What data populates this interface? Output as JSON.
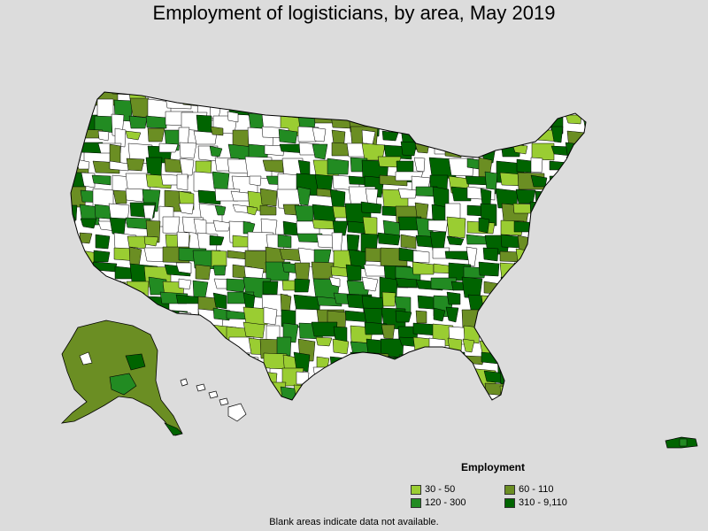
{
  "title": "Employment of logisticians, by area, May 2019",
  "legend": {
    "title": "Employment",
    "items": [
      {
        "label": "30 - 50",
        "color": "#9acd32"
      },
      {
        "label": "60 - 110",
        "color": "#6b8e23"
      },
      {
        "label": "120 - 300",
        "color": "#228b22"
      },
      {
        "label": "310 - 9,110",
        "color": "#006400"
      }
    ]
  },
  "footnote": "Blank areas indicate data not available.",
  "colors": {
    "background": "#dcdcdc",
    "no_data": "#ffffff",
    "border": "#000000"
  }
}
